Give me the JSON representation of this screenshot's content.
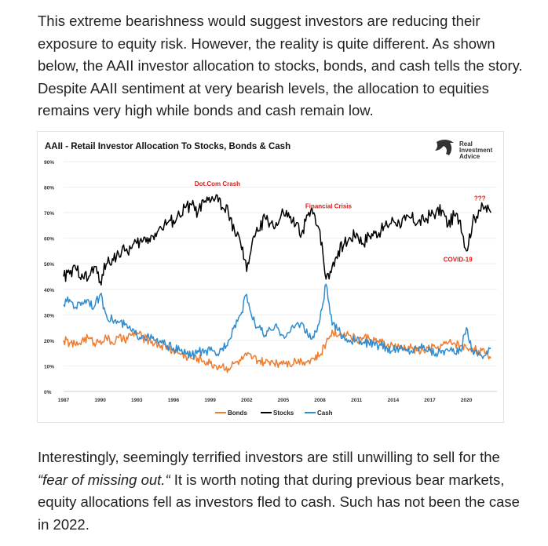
{
  "article": {
    "paragraph1": "This extreme bearishness would suggest investors are reducing their exposure to equity risk. However, the reality is quite different. As shown below, the AAII investor allocation to stocks, bonds, and cash tells the story. Despite AAII sentiment at very bearish levels, the allocation to equities remains very high while bonds and cash remain low.",
    "paragraph2_part1": "Interestingly, seemingly terrified investors are still unwilling to sell for the ",
    "paragraph2_quote": "“fear of missing out.“",
    "paragraph2_part2": " It is worth noting that during previous bear markets, equity allocations fell as investors fled to cash. Such has not been the case in 2022."
  },
  "logo": {
    "line1": "Real",
    "line2": "Investment",
    "line3": "Advice"
  },
  "colors": {
    "stocks": "#000000",
    "bonds": "#ed7d31",
    "cash": "#2e8ccf",
    "annotation": "#d21f1f"
  },
  "chart_data": {
    "type": "line",
    "title": "AAII - Retail Investor Allocation To Stocks, Bonds & Cash",
    "xlim": [
      1987,
      2022.5
    ],
    "ylim": [
      0,
      90
    ],
    "x_ticks": [
      "1987",
      "1990",
      "1993",
      "1996",
      "1999",
      "2002",
      "2005",
      "2008",
      "2011",
      "2014",
      "2017",
      "2020"
    ],
    "y_ticks": [
      "0%",
      "10%",
      "20%",
      "30%",
      "40%",
      "50%",
      "60%",
      "70%",
      "80%",
      "90%"
    ],
    "y_tick_values": [
      0,
      10,
      20,
      30,
      40,
      50,
      60,
      70,
      80,
      90
    ],
    "legend_position": "bottom",
    "annotations": [
      {
        "text": "Dot.Com Crash",
        "x": 1999.6,
        "y": 80.5
      },
      {
        "text": "Financial Crisis",
        "x": 2008.7,
        "y": 71.8
      },
      {
        "text": "???",
        "x": 2021.1,
        "y": 74.8
      },
      {
        "text": "COVID-19",
        "x": 2019.3,
        "y": 50.8
      }
    ],
    "series": [
      {
        "name": "Stocks",
        "x": [
          1987,
          1987.5,
          1988,
          1988.5,
          1989,
          1989.5,
          1990,
          1990.5,
          1991,
          1991.5,
          1992,
          1992.5,
          1993,
          1993.5,
          1994,
          1994.5,
          1995,
          1995.5,
          1996,
          1996.5,
          1997,
          1997.5,
          1998,
          1998.5,
          1999,
          1999.5,
          2000,
          2000.5,
          2001,
          2001.5,
          2002,
          2002.5,
          2003,
          2003.5,
          2004,
          2004.5,
          2005,
          2005.5,
          2006,
          2006.5,
          2007,
          2007.5,
          2008,
          2008.5,
          2009,
          2009.5,
          2010,
          2010.5,
          2011,
          2011.5,
          2012,
          2012.5,
          2013,
          2013.5,
          2014,
          2014.5,
          2015,
          2015.5,
          2016,
          2016.5,
          2017,
          2017.5,
          2018,
          2018.5,
          2019,
          2019.5,
          2020,
          2020.5,
          2021,
          2021.5,
          2022
        ],
        "values": [
          45,
          46,
          48,
          46,
          44,
          49,
          43,
          50,
          52,
          54,
          55,
          56,
          58,
          59,
          60,
          62,
          64,
          66,
          67,
          69,
          72,
          73,
          70,
          74,
          74,
          77,
          72,
          70,
          63,
          58,
          47,
          60,
          63,
          68,
          66,
          65,
          70,
          68,
          65,
          62,
          69,
          70,
          63,
          44,
          49,
          55,
          58,
          60,
          62,
          58,
          61,
          62,
          63,
          65,
          67,
          66,
          67,
          68,
          66,
          67,
          69,
          70,
          71,
          65,
          69,
          67,
          55,
          66,
          71,
          72,
          70
        ]
      },
      {
        "name": "Bonds",
        "x": [
          1987,
          1987.5,
          1988,
          1988.5,
          1989,
          1989.5,
          1990,
          1990.5,
          1991,
          1991.5,
          1992,
          1992.5,
          1993,
          1993.5,
          1994,
          1994.5,
          1995,
          1995.5,
          1996,
          1996.5,
          1997,
          1997.5,
          1998,
          1998.5,
          1999,
          1999.5,
          2000,
          2000.5,
          2001,
          2001.5,
          2002,
          2002.5,
          2003,
          2003.5,
          2004,
          2004.5,
          2005,
          2005.5,
          2006,
          2006.5,
          2007,
          2007.5,
          2008,
          2008.5,
          2009,
          2009.5,
          2010,
          2010.5,
          2011,
          2011.5,
          2012,
          2012.5,
          2013,
          2013.5,
          2014,
          2014.5,
          2015,
          2015.5,
          2016,
          2016.5,
          2017,
          2017.5,
          2018,
          2018.5,
          2019,
          2019.5,
          2020,
          2020.5,
          2021,
          2021.5,
          2022
        ],
        "values": [
          20,
          19,
          18,
          20,
          21,
          19,
          20,
          21,
          19,
          21,
          20,
          22,
          23,
          21,
          20,
          19,
          18,
          17,
          16,
          15,
          14,
          13,
          13,
          12,
          11,
          10,
          10,
          9,
          11,
          12,
          14,
          13,
          12,
          11,
          12,
          11,
          12,
          11,
          12,
          12,
          12,
          13,
          14,
          19,
          24,
          22,
          23,
          22,
          20,
          21,
          21,
          20,
          19,
          18,
          18,
          17,
          17,
          17,
          16,
          16,
          17,
          17,
          18,
          19,
          19,
          18,
          17,
          17,
          16,
          15,
          13
        ]
      },
      {
        "name": "Cash",
        "x": [
          1987,
          1987.5,
          1988,
          1988.5,
          1989,
          1989.5,
          1990,
          1990.5,
          1991,
          1991.5,
          1992,
          1992.5,
          1993,
          1993.5,
          1994,
          1994.5,
          1995,
          1995.5,
          1996,
          1996.5,
          1997,
          1997.5,
          1998,
          1998.5,
          1999,
          1999.5,
          2000,
          2000.5,
          2001,
          2001.5,
          2002,
          2002.5,
          2003,
          2003.5,
          2004,
          2004.5,
          2005,
          2005.5,
          2006,
          2006.5,
          2007,
          2007.5,
          2008,
          2008.5,
          2009,
          2009.5,
          2010,
          2010.5,
          2011,
          2011.5,
          2012,
          2012.5,
          2013,
          2013.5,
          2014,
          2014.5,
          2015,
          2015.5,
          2016,
          2016.5,
          2017,
          2017.5,
          2018,
          2018.5,
          2019,
          2019.5,
          2020,
          2020.5,
          2021,
          2021.5,
          2022
        ],
        "values": [
          34,
          36,
          33,
          35,
          36,
          33,
          38,
          30,
          28,
          27,
          26,
          24,
          22,
          22,
          21,
          20,
          19,
          18,
          17,
          16,
          15,
          14,
          16,
          15,
          16,
          14,
          17,
          20,
          26,
          30,
          38,
          28,
          25,
          22,
          24,
          25,
          22,
          23,
          26,
          27,
          22,
          21,
          28,
          42,
          26,
          24,
          21,
          20,
          20,
          19,
          19,
          18,
          18,
          17,
          16,
          17,
          16,
          16,
          17,
          18,
          16,
          15,
          16,
          16,
          15,
          16,
          25,
          16,
          15,
          14,
          17
        ]
      }
    ]
  }
}
